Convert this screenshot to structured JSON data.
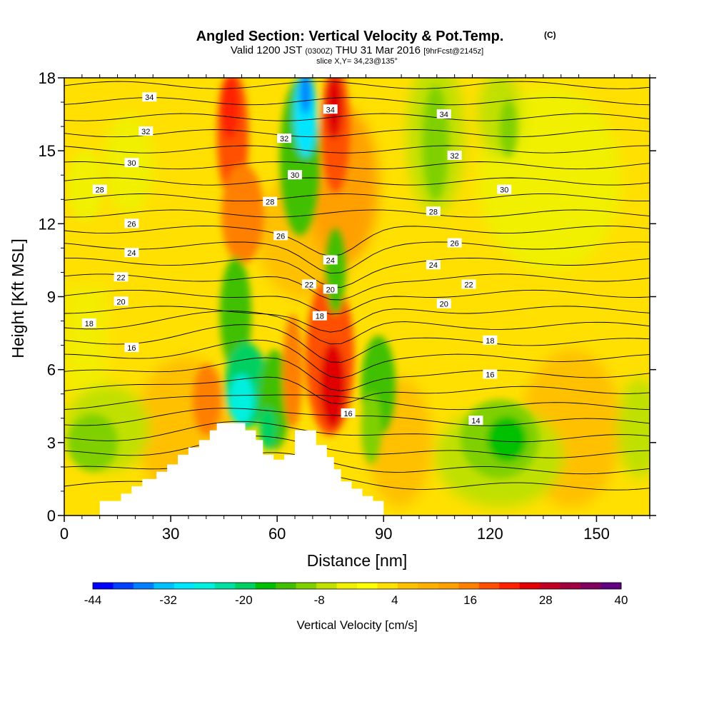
{
  "title": {
    "main": "Angled Section: Vertical Velocity & Pot.Temp.",
    "units": "(C)",
    "valid_prefix": "Valid 1200 JST",
    "valid_utc": "(0300Z)",
    "valid_date": "THU 31 Mar 2016",
    "forecast": "[9hrFcst@2145z]",
    "slice": "slice X,Y= 34,23@135°"
  },
  "colorbar": {
    "label": "Vertical Velocity [cm/s]",
    "tick_labels": [
      "-44",
      "-32",
      "-20",
      "-8",
      "4",
      "16",
      "28",
      "40"
    ],
    "colors": [
      "#0000ff",
      "#0040ff",
      "#0080ff",
      "#00c0ff",
      "#00e6ff",
      "#00f0e0",
      "#00e0a0",
      "#00d060",
      "#00c000",
      "#40c000",
      "#80d000",
      "#c0e000",
      "#f0f000",
      "#ffff00",
      "#ffe000",
      "#ffc000",
      "#ffb000",
      "#ffa000",
      "#ff8000",
      "#ff5000",
      "#ff2000",
      "#e00000",
      "#c00020",
      "#a00040",
      "#800060",
      "#600080"
    ]
  },
  "chart_data": {
    "type": "heatmap",
    "xlabel": "Distance [nm]",
    "ylabel": "Height [Kft MSL]",
    "xlim": [
      0,
      165
    ],
    "ylim": [
      0,
      18
    ],
    "xticks": [
      0,
      30,
      60,
      90,
      120,
      150
    ],
    "yticks": [
      0,
      3,
      6,
      9,
      12,
      15,
      18
    ],
    "field": "Vertical Velocity [cm/s]",
    "field_range": [
      -44,
      40
    ],
    "features": [
      {
        "x": 48,
        "y": 4.5,
        "value": -30
      },
      {
        "x": 68,
        "y": 17.5,
        "value": -40
      },
      {
        "x": 76,
        "y": 5.0,
        "value": 28
      },
      {
        "x": 47,
        "y": 17.0,
        "value": 24
      },
      {
        "x": 77,
        "y": 17.0,
        "value": 26
      },
      {
        "x": 125,
        "y": 3.2,
        "value": -18
      },
      {
        "x": 84,
        "y": 7.0,
        "value": -14
      },
      {
        "x": 105,
        "y": 16.5,
        "value": -10
      }
    ],
    "contour_labels": [
      {
        "label": "34",
        "x": 24,
        "y": 17.2
      },
      {
        "label": "32",
        "x": 23,
        "y": 15.8
      },
      {
        "label": "30",
        "x": 19,
        "y": 14.5
      },
      {
        "label": "28",
        "x": 10,
        "y": 13.4
      },
      {
        "label": "26",
        "x": 19,
        "y": 12.0
      },
      {
        "label": "24",
        "x": 19,
        "y": 10.8
      },
      {
        "label": "22",
        "x": 16,
        "y": 9.8
      },
      {
        "label": "20",
        "x": 16,
        "y": 8.8
      },
      {
        "label": "18",
        "x": 7,
        "y": 7.9
      },
      {
        "label": "16",
        "x": 19,
        "y": 6.9
      },
      {
        "label": "32",
        "x": 62,
        "y": 15.5
      },
      {
        "label": "30",
        "x": 65,
        "y": 14.0
      },
      {
        "label": "28",
        "x": 58,
        "y": 12.9
      },
      {
        "label": "26",
        "x": 61,
        "y": 11.5
      },
      {
        "label": "34",
        "x": 75,
        "y": 16.7
      },
      {
        "label": "24",
        "x": 75,
        "y": 10.5
      },
      {
        "label": "22",
        "x": 69,
        "y": 9.5
      },
      {
        "label": "20",
        "x": 75,
        "y": 9.3
      },
      {
        "label": "18",
        "x": 72,
        "y": 8.2
      },
      {
        "label": "16",
        "x": 80,
        "y": 4.2
      },
      {
        "label": "34",
        "x": 107,
        "y": 16.5
      },
      {
        "label": "32",
        "x": 110,
        "y": 14.8
      },
      {
        "label": "30",
        "x": 124,
        "y": 13.4
      },
      {
        "label": "28",
        "x": 104,
        "y": 12.5
      },
      {
        "label": "26",
        "x": 110,
        "y": 11.2
      },
      {
        "label": "24",
        "x": 104,
        "y": 10.3
      },
      {
        "label": "22",
        "x": 114,
        "y": 9.5
      },
      {
        "label": "20",
        "x": 107,
        "y": 8.7
      },
      {
        "label": "18",
        "x": 120,
        "y": 7.2
      },
      {
        "label": "16",
        "x": 120,
        "y": 5.8
      },
      {
        "label": "14",
        "x": 116,
        "y": 3.9
      }
    ],
    "terrain": [
      [
        10,
        0
      ],
      [
        10,
        0.6
      ],
      [
        16,
        0.6
      ],
      [
        16,
        0.9
      ],
      [
        19,
        0.9
      ],
      [
        19,
        1.2
      ],
      [
        22,
        1.2
      ],
      [
        22,
        1.5
      ],
      [
        26,
        1.5
      ],
      [
        26,
        1.8
      ],
      [
        29,
        1.8
      ],
      [
        29,
        2.1
      ],
      [
        32,
        2.1
      ],
      [
        32,
        2.5
      ],
      [
        35,
        2.5
      ],
      [
        35,
        2.8
      ],
      [
        38,
        2.8
      ],
      [
        38,
        3.1
      ],
      [
        41,
        3.1
      ],
      [
        41,
        3.5
      ],
      [
        43,
        3.5
      ],
      [
        43,
        3.8
      ],
      [
        51,
        3.8
      ],
      [
        51,
        3.5
      ],
      [
        54,
        3.5
      ],
      [
        54,
        3.1
      ],
      [
        56,
        3.1
      ],
      [
        56,
        2.5
      ],
      [
        59,
        2.5
      ],
      [
        59,
        2.3
      ],
      [
        62,
        2.3
      ],
      [
        62,
        2.5
      ],
      [
        65,
        2.5
      ],
      [
        65,
        3.5
      ],
      [
        71,
        3.5
      ],
      [
        71,
        2.9
      ],
      [
        74,
        2.9
      ],
      [
        74,
        2.4
      ],
      [
        76,
        2.4
      ],
      [
        76,
        1.9
      ],
      [
        78,
        1.9
      ],
      [
        78,
        1.4
      ],
      [
        81,
        1.4
      ],
      [
        81,
        1.1
      ],
      [
        84,
        1.1
      ],
      [
        84,
        0.8
      ],
      [
        87,
        0.8
      ],
      [
        87,
        0.6
      ],
      [
        90,
        0.6
      ],
      [
        90,
        0
      ]
    ]
  }
}
